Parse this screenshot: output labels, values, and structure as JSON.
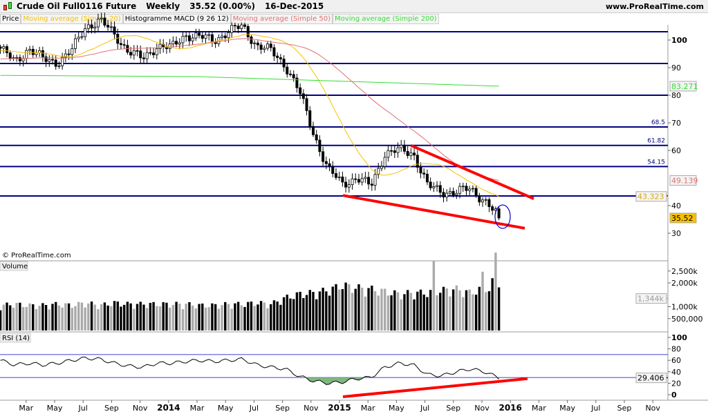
{
  "header": {
    "instrument": "Crude Oil Full0116 Future",
    "period": "Weekly",
    "price": "35.52 (0.00%)",
    "date": "16-Dec-2015",
    "site": "www.ProRealTime.com"
  },
  "legend": [
    {
      "label": "Price",
      "color": "#000000"
    },
    {
      "label": "Moving average (Simple 20)",
      "color": "#f5c000"
    },
    {
      "label": "Histogramme MACD (9 26 12)",
      "color": "#000000"
    },
    {
      "label": "Moving average (Simple 50)",
      "color": "#e07070"
    },
    {
      "label": "Moving average (Simple 200)",
      "color": "#33dd33"
    }
  ],
  "watermark": "© ProRealTime.com",
  "price_axis": {
    "ticks": [
      "100",
      "90",
      "80",
      "70",
      "60",
      "40",
      "30"
    ],
    "values": [
      100,
      90,
      80,
      70,
      60,
      40,
      30
    ]
  },
  "levels": [
    {
      "value": 103,
      "label": ""
    },
    {
      "value": 91.5,
      "label": ""
    },
    {
      "value": 80,
      "label": ""
    },
    {
      "value": 68.5,
      "label": "68.5"
    },
    {
      "value": 61.82,
      "label": "61.82"
    },
    {
      "value": 54.15,
      "label": "54.15"
    },
    {
      "value": 43.5,
      "label": ""
    }
  ],
  "tags": {
    "ma200": "83.271",
    "ma50": "49.139",
    "ma20": "43.323",
    "last": "35.52"
  },
  "volume": {
    "title": "Volume",
    "ticks": [
      "2,500k",
      "2,000k",
      "1,000k",
      "500,000"
    ],
    "tick_values": [
      2500,
      2000,
      1000,
      500
    ],
    "last": "1,344k"
  },
  "rsi": {
    "title": "RSI (14)",
    "ticks": [
      "100",
      "80",
      "60",
      "40",
      "20",
      "0"
    ],
    "tick_values": [
      100,
      80,
      60,
      40,
      20,
      0
    ],
    "last": "29.406"
  },
  "time_axis": [
    {
      "label": "Mar",
      "m": 2
    },
    {
      "label": "May",
      "m": 4
    },
    {
      "label": "Jul",
      "m": 6
    },
    {
      "label": "Sep",
      "m": 8
    },
    {
      "label": "Nov",
      "m": 10
    },
    {
      "label": "2014",
      "m": 12
    },
    {
      "label": "Mar",
      "m": 14
    },
    {
      "label": "May",
      "m": 16
    },
    {
      "label": "Jul",
      "m": 18
    },
    {
      "label": "Sep",
      "m": 20
    },
    {
      "label": "Nov",
      "m": 22
    },
    {
      "label": "2015",
      "m": 24
    },
    {
      "label": "Mar",
      "m": 26
    },
    {
      "label": "May",
      "m": 28
    },
    {
      "label": "Jul",
      "m": 30
    },
    {
      "label": "Sep",
      "m": 32
    },
    {
      "label": "Nov",
      "m": 34
    },
    {
      "label": "2016",
      "m": 36
    },
    {
      "label": "Mar",
      "m": 38
    },
    {
      "label": "May",
      "m": 40
    },
    {
      "label": "Jul",
      "m": 42
    },
    {
      "label": "Sep",
      "m": 44
    },
    {
      "label": "Nov",
      "m": 46
    }
  ],
  "chart_data": {
    "type": "candlestick",
    "monthly_close": [
      97,
      92,
      97,
      93,
      92,
      96,
      105,
      107,
      102,
      96,
      93,
      98,
      97,
      102,
      101,
      100,
      103,
      105,
      98,
      96,
      91,
      81,
      66,
      53,
      48,
      50,
      47,
      59,
      60,
      59,
      47,
      45,
      45,
      46,
      42,
      35.52
    ],
    "monthly_volume_k": [
      1000,
      1050,
      1000,
      1000,
      1050,
      1000,
      1100,
      1000,
      1100,
      1050,
      1050,
      1050,
      1050,
      1050,
      1000,
      1000,
      1050,
      1050,
      1100,
      1050,
      1300,
      1450,
      1500,
      1600,
      1800,
      1700,
      1650,
      1550,
      1450,
      1500,
      1500,
      1600,
      1650,
      1500,
      1700,
      2100
    ],
    "monthly_rsi": [
      60,
      52,
      55,
      52,
      55,
      60,
      64,
      62,
      55,
      50,
      48,
      55,
      55,
      58,
      60,
      58,
      60,
      62,
      52,
      48,
      45,
      32,
      24,
      20,
      22,
      28,
      30,
      48,
      55,
      52,
      35,
      33,
      40,
      45,
      40,
      29.4
    ],
    "trendlines": [
      {
        "from": [
          "2015-06",
          61.8
        ],
        "to": [
          "2016-01",
          42
        ]
      },
      {
        "from": [
          "2015-01",
          43.7
        ],
        "to": [
          "2016-01",
          32
        ]
      },
      {
        "pane": "rsi",
        "from": [
          "2015-01",
          0
        ],
        "to": [
          "2016-01",
          28
        ]
      }
    ]
  }
}
